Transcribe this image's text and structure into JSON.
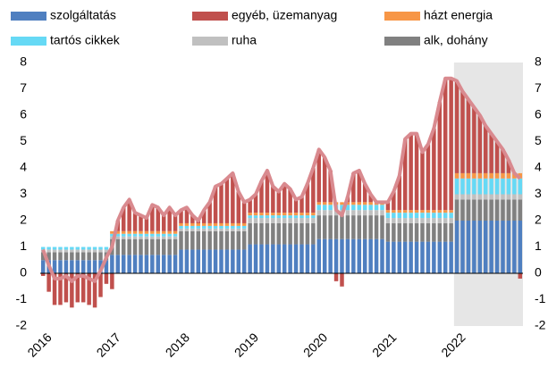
{
  "chart_data": {
    "type": "bar",
    "stacked": true,
    "categories": [
      "2016",
      null,
      null,
      null,
      null,
      null,
      null,
      null,
      null,
      null,
      null,
      null,
      "2017",
      null,
      null,
      null,
      null,
      null,
      null,
      null,
      null,
      null,
      null,
      null,
      "2018",
      null,
      null,
      null,
      null,
      null,
      null,
      null,
      null,
      null,
      null,
      null,
      "2019",
      null,
      null,
      null,
      null,
      null,
      null,
      null,
      null,
      null,
      null,
      null,
      "2020",
      null,
      null,
      null,
      null,
      null,
      null,
      null,
      null,
      null,
      null,
      null,
      "2021",
      null,
      null,
      null,
      null,
      null,
      null,
      null,
      null,
      null,
      null,
      null,
      "2022",
      null,
      null,
      null,
      null,
      null,
      null,
      null,
      null,
      null,
      null,
      null
    ],
    "shade_from_category": "2022",
    "series": [
      {
        "name": "szolgáltatás",
        "color": "#4f7fc0",
        "values": [
          0.5,
          0.5,
          0.5,
          0.5,
          0.5,
          0.5,
          0.5,
          0.5,
          0.5,
          0.5,
          0.5,
          0.5,
          0.7,
          0.7,
          0.7,
          0.7,
          0.7,
          0.7,
          0.7,
          0.7,
          0.7,
          0.7,
          0.7,
          0.7,
          0.9,
          0.9,
          0.9,
          0.9,
          0.9,
          0.9,
          0.9,
          0.9,
          0.9,
          0.9,
          0.9,
          0.9,
          1.1,
          1.1,
          1.1,
          1.1,
          1.1,
          1.1,
          1.1,
          1.1,
          1.1,
          1.1,
          1.1,
          1.1,
          1.3,
          1.3,
          1.3,
          1.3,
          1.3,
          1.3,
          1.3,
          1.3,
          1.3,
          1.3,
          1.3,
          1.3,
          1.2,
          1.2,
          1.2,
          1.2,
          1.2,
          1.2,
          1.2,
          1.2,
          1.2,
          1.2,
          1.2,
          1.2,
          2.0,
          2.0,
          2.0,
          2.0,
          2.0,
          2.0,
          2.0,
          2.0,
          2.0,
          2.0,
          2.0,
          2.0
        ]
      },
      {
        "name": "egyéb, üzemanyag",
        "color": "#c0504d",
        "values": [
          -0.1,
          -0.7,
          -1.2,
          -1.2,
          -1.1,
          -1.3,
          -1.1,
          -1.1,
          -1.2,
          -1.3,
          -0.9,
          -0.4,
          -0.6,
          0.4,
          0.9,
          1.2,
          0.7,
          0.6,
          0.5,
          1.0,
          0.9,
          0.6,
          0.9,
          0.6,
          0.5,
          0.6,
          0.3,
          0.1,
          0.5,
          0.8,
          1.4,
          1.5,
          1.7,
          1.9,
          1.2,
          0.8,
          0.5,
          0.7,
          1.2,
          1.6,
          1.0,
          0.8,
          1.1,
          0.9,
          0.5,
          0.6,
          1.1,
          1.7,
          2.0,
          1.7,
          1.2,
          -0.3,
          -0.5,
          0.2,
          1.1,
          1.2,
          0.7,
          0.3,
          0.0,
          0.0,
          0.3,
          0.7,
          1.3,
          2.7,
          2.9,
          2.9,
          2.2,
          2.5,
          3.1,
          4.1,
          5.0,
          5.0,
          3.5,
          3.1,
          2.8,
          2.5,
          2.2,
          1.8,
          1.5,
          1.2,
          0.9,
          0.5,
          0.0,
          -0.2
        ]
      },
      {
        "name": "házt energia",
        "color": "#f79646",
        "values": [
          0.0,
          0.0,
          0.0,
          0.0,
          0.0,
          0.0,
          0.0,
          0.0,
          0.0,
          0.0,
          0.0,
          0.0,
          0.1,
          0.1,
          0.1,
          0.1,
          0.1,
          0.1,
          0.1,
          0.1,
          0.1,
          0.1,
          0.1,
          0.1,
          0.1,
          0.1,
          0.1,
          0.1,
          0.1,
          0.1,
          0.1,
          0.1,
          0.1,
          0.1,
          0.1,
          0.1,
          0.1,
          0.1,
          0.1,
          0.1,
          0.1,
          0.1,
          0.1,
          0.1,
          0.1,
          0.1,
          0.1,
          0.1,
          0.1,
          0.1,
          0.1,
          0.1,
          0.1,
          0.1,
          0.1,
          0.1,
          0.1,
          0.1,
          0.1,
          0.1,
          0.1,
          0.1,
          0.1,
          0.1,
          0.1,
          0.1,
          0.1,
          0.1,
          0.1,
          0.1,
          0.1,
          0.1,
          0.2,
          0.2,
          0.2,
          0.2,
          0.2,
          0.2,
          0.2,
          0.2,
          0.2,
          0.2,
          0.2,
          0.2
        ]
      },
      {
        "name": "tartós cikkek",
        "color": "#66d9f5",
        "values": [
          0.1,
          0.1,
          0.1,
          0.1,
          0.1,
          0.1,
          0.1,
          0.1,
          0.1,
          0.1,
          0.1,
          0.1,
          0.1,
          0.1,
          0.1,
          0.1,
          0.1,
          0.1,
          0.1,
          0.1,
          0.1,
          0.1,
          0.1,
          0.1,
          0.1,
          0.1,
          0.1,
          0.1,
          0.1,
          0.1,
          0.1,
          0.1,
          0.1,
          0.1,
          0.1,
          0.1,
          0.1,
          0.1,
          0.1,
          0.1,
          0.1,
          0.1,
          0.1,
          0.1,
          0.1,
          0.1,
          0.1,
          0.1,
          0.2,
          0.2,
          0.2,
          0.2,
          0.2,
          0.2,
          0.2,
          0.2,
          0.2,
          0.2,
          0.2,
          0.2,
          0.2,
          0.2,
          0.2,
          0.2,
          0.2,
          0.2,
          0.2,
          0.2,
          0.2,
          0.2,
          0.2,
          0.2,
          0.6,
          0.6,
          0.6,
          0.6,
          0.6,
          0.6,
          0.6,
          0.6,
          0.6,
          0.6,
          0.6,
          0.6
        ]
      },
      {
        "name": "ruha",
        "color": "#c0c0c0",
        "values": [
          0.1,
          0.1,
          0.1,
          0.1,
          0.1,
          0.1,
          0.1,
          0.1,
          0.1,
          0.1,
          0.1,
          0.1,
          0.1,
          0.1,
          0.1,
          0.1,
          0.1,
          0.1,
          0.1,
          0.1,
          0.1,
          0.1,
          0.1,
          0.1,
          0.1,
          0.1,
          0.1,
          0.1,
          0.1,
          0.1,
          0.1,
          0.1,
          0.1,
          0.1,
          0.1,
          0.1,
          0.2,
          0.2,
          0.2,
          0.2,
          0.2,
          0.2,
          0.2,
          0.2,
          0.2,
          0.2,
          0.2,
          0.2,
          0.2,
          0.2,
          0.2,
          0.2,
          0.2,
          0.2,
          0.2,
          0.2,
          0.2,
          0.2,
          0.2,
          0.2,
          0.2,
          0.2,
          0.2,
          0.2,
          0.2,
          0.2,
          0.2,
          0.2,
          0.2,
          0.2,
          0.2,
          0.2,
          0.2,
          0.2,
          0.2,
          0.2,
          0.2,
          0.2,
          0.2,
          0.2,
          0.2,
          0.2,
          0.2,
          0.2
        ]
      },
      {
        "name": "alk, dohány",
        "color": "#808080",
        "values": [
          0.3,
          0.3,
          0.3,
          0.3,
          0.3,
          0.3,
          0.3,
          0.3,
          0.3,
          0.3,
          0.3,
          0.3,
          0.6,
          0.6,
          0.6,
          0.6,
          0.6,
          0.6,
          0.6,
          0.6,
          0.6,
          0.6,
          0.6,
          0.6,
          0.7,
          0.7,
          0.7,
          0.7,
          0.7,
          0.7,
          0.7,
          0.7,
          0.7,
          0.7,
          0.7,
          0.7,
          0.8,
          0.8,
          0.8,
          0.8,
          0.8,
          0.8,
          0.8,
          0.8,
          0.8,
          0.8,
          0.8,
          0.8,
          0.9,
          0.9,
          0.9,
          0.9,
          0.9,
          0.9,
          0.9,
          0.9,
          0.9,
          0.9,
          0.9,
          0.9,
          0.7,
          0.7,
          0.7,
          0.7,
          0.7,
          0.7,
          0.7,
          0.7,
          0.7,
          0.7,
          0.7,
          0.7,
          0.8,
          0.8,
          0.8,
          0.8,
          0.8,
          0.8,
          0.8,
          0.8,
          0.8,
          0.8,
          0.8,
          0.8
        ]
      }
    ],
    "total": {
      "color": "#d98a8f",
      "values": [
        0.9,
        0.3,
        -0.2,
        -0.2,
        -0.1,
        -0.3,
        -0.1,
        -0.1,
        -0.2,
        -0.3,
        0.1,
        0.6,
        1.0,
        2.0,
        2.5,
        2.8,
        2.3,
        2.2,
        2.1,
        2.6,
        2.5,
        2.2,
        2.5,
        2.2,
        2.4,
        2.5,
        2.2,
        2.0,
        2.4,
        2.7,
        3.3,
        3.4,
        3.6,
        3.8,
        3.1,
        2.7,
        2.8,
        3.0,
        3.5,
        3.9,
        3.3,
        3.1,
        3.4,
        3.2,
        2.8,
        2.9,
        3.4,
        4.0,
        4.7,
        4.4,
        3.9,
        2.4,
        2.2,
        2.9,
        3.8,
        3.9,
        3.4,
        3.0,
        2.7,
        2.7,
        2.7,
        3.1,
        3.7,
        5.1,
        5.3,
        5.3,
        4.6,
        4.9,
        5.5,
        6.5,
        7.4,
        7.4,
        7.3,
        6.9,
        6.6,
        6.3,
        6.0,
        5.6,
        5.3,
        5.0,
        4.7,
        4.3,
        3.8,
        3.6
      ]
    },
    "ylim": [
      -2,
      8
    ],
    "yticks": [
      -2,
      -1,
      0,
      1,
      2,
      3,
      4,
      5,
      6,
      7,
      8
    ],
    "y2lim": [
      -2,
      8
    ],
    "y2ticks": [
      -2,
      -1,
      0,
      1,
      2,
      3,
      4,
      5,
      6,
      7,
      8
    ]
  }
}
